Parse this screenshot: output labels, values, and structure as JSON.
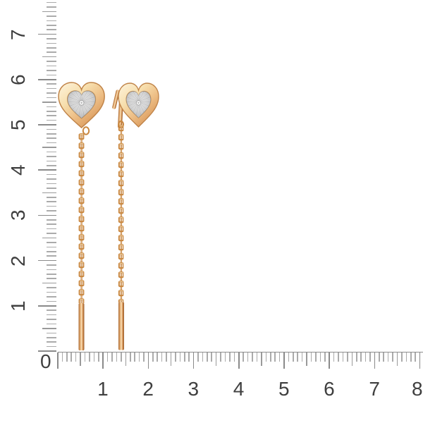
{
  "rulers": {
    "corner_zero": "0",
    "vertical": {
      "labels": [
        "7",
        "6",
        "5",
        "4",
        "3",
        "2",
        "1"
      ]
    },
    "horizontal": {
      "labels": [
        "1",
        "2",
        "3",
        "4",
        "5",
        "6",
        "7",
        "8"
      ]
    }
  },
  "colors": {
    "background": "#ffffff",
    "tick_minor": "#ababab",
    "tick_half": "#9a9a9a",
    "tick_major": "#8a8a8a",
    "label_text": "#3f3f3f",
    "gold_highlight": "#fdf4de",
    "gold_mid": "#eec088",
    "gold_deep": "#d2934f",
    "gold_edge": "#c08449",
    "rhodium_light": "#f0f0f0",
    "rhodium_deep": "#a3a4a6"
  }
}
